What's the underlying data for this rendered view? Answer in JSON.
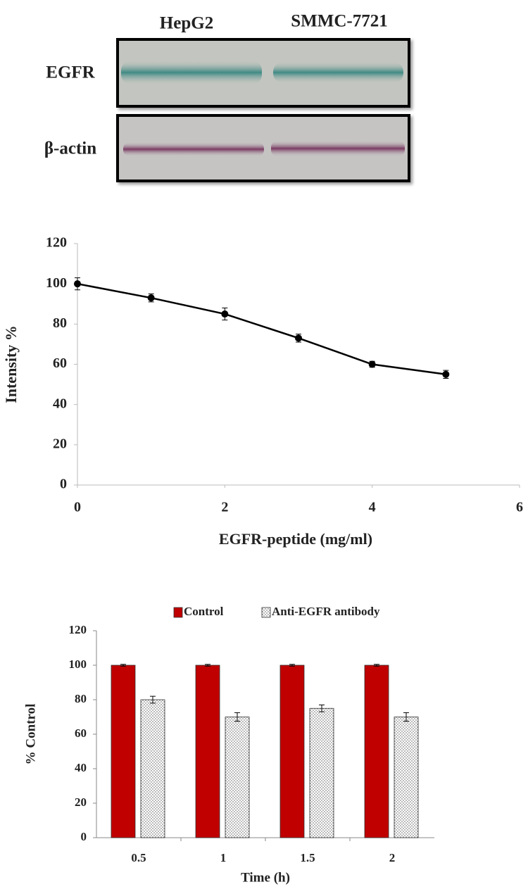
{
  "blot": {
    "lanes": [
      "HepG2",
      "SMMC-7721"
    ],
    "rows": [
      "EGFR",
      "β-actin"
    ]
  },
  "chart_data": [
    {
      "type": "line",
      "x": [
        0,
        1,
        2,
        3,
        4,
        5
      ],
      "values": [
        100,
        93,
        85,
        73,
        60,
        55
      ],
      "errors": [
        3,
        2,
        3,
        2,
        1.5,
        2
      ],
      "color": "#000000",
      "xlim": [
        0,
        6
      ],
      "xticks": [
        0,
        2,
        4,
        6
      ],
      "ylim": [
        0,
        120
      ],
      "yticks": [
        0,
        20,
        40,
        60,
        80,
        100,
        120
      ],
      "xlabel": "EGFR-peptide (mg/ml)",
      "ylabel": "Intensity  %"
    },
    {
      "type": "bar",
      "categories": [
        "0.5",
        "1",
        "1.5",
        "2"
      ],
      "series": [
        {
          "name": "Control",
          "color": "#c00000",
          "values": [
            100,
            100,
            100,
            100
          ],
          "errors": [
            0.5,
            0.5,
            0.5,
            0.5
          ]
        },
        {
          "name": "Anti-EGFR antibody",
          "color": "#ffffff",
          "pattern": "dots",
          "values": [
            80,
            70,
            75,
            70
          ],
          "errors": [
            2,
            2.5,
            2,
            2.5
          ]
        }
      ],
      "ylim": [
        0,
        120
      ],
      "yticks": [
        0,
        20,
        40,
        60,
        80,
        100,
        120
      ],
      "xlabel": "Time (h)",
      "ylabel": "% Control",
      "legend": "top"
    }
  ]
}
